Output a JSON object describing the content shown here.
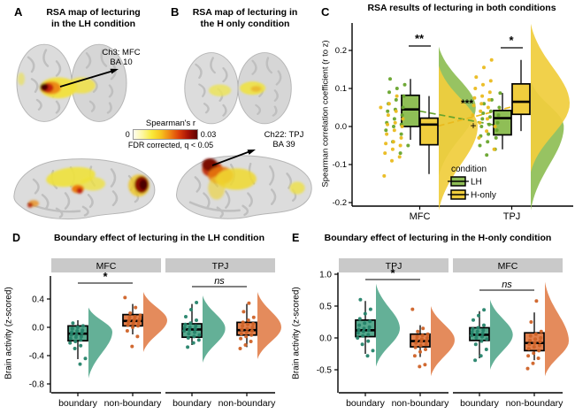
{
  "figure": {
    "panel_a": {
      "label": "A",
      "title_line1": "RSA map of lecturing",
      "title_line2": "in the LH condition",
      "annotation_line1": "Ch3: MFC",
      "annotation_line2": "BA 10"
    },
    "panel_b": {
      "label": "B",
      "title_line1": "RSA map of lecturing in",
      "title_line2": "the H only condition",
      "annotation_line1": "Ch22: TPJ",
      "annotation_line2": "BA 39"
    },
    "colorbar": {
      "title": "Spearman's r",
      "min_label": "0",
      "max_label": "0.03",
      "note": "FDR corrected, q < 0.05",
      "gradient": [
        "#fffef0",
        "#fdf7a0",
        "#f9ea3a",
        "#f7c41e",
        "#ef8313",
        "#dc3e0a",
        "#a51106",
        "#5d0302"
      ]
    },
    "panel_c": {
      "label": "C"
    },
    "panel_d": {
      "label": "D"
    },
    "panel_e": {
      "label": "E"
    }
  },
  "colors": {
    "lh_green": "#8fbe56",
    "lh_green_dot": "#67a42c",
    "honly_yellow": "#f0cd3d",
    "honly_yellow_dot": "#eaba1d",
    "boundary_teal": "#57a98e",
    "boundary_teal_dot": "#25836a",
    "nonboundary_orange": "#e2814e",
    "nonboundary_orange_dot": "#cf6227",
    "strip_gray": "#c9c9c9"
  },
  "chart_data": [
    {
      "id": "panel_c",
      "type": "raincloud-box",
      "title": "RSA results of lecturing in both conditions",
      "ylabel": "Spearman correlation coefficient (r to z)",
      "ylim": [
        -0.22,
        0.27
      ],
      "yticks": [
        0.2,
        0.1,
        0.0,
        -0.1,
        -0.2
      ],
      "categories": [
        "MFC",
        "TPJ"
      ],
      "legend": {
        "title": "condition",
        "entries": [
          {
            "label": "LH"
          },
          {
            "label": "H-only"
          }
        ]
      },
      "significance": {
        "MFC": "**",
        "TPJ": "*",
        "interaction": "***",
        "marginal": "+"
      },
      "trend_means": {
        "LH": [
          0.045,
          0.0
        ],
        "H_only": [
          -0.005,
          0.058
        ]
      },
      "groups": [
        {
          "category": "MFC",
          "condition": "LH",
          "box": {
            "lo": -0.035,
            "q1": 0.0,
            "med": 0.045,
            "q3": 0.082,
            "hi": 0.125
          },
          "violin": {
            "top": 0.21,
            "peak": 0.05,
            "bottom": -0.13,
            "rel": 0.95
          },
          "points": [
            -0.07,
            -0.05,
            -0.04,
            -0.02,
            -0.01,
            0.0,
            0.005,
            0.01,
            0.02,
            0.03,
            0.04,
            0.045,
            0.05,
            0.06,
            0.07,
            0.08,
            0.09,
            0.1,
            0.11,
            0.125
          ]
        },
        {
          "category": "MFC",
          "condition": "H-only",
          "box": {
            "lo": -0.125,
            "q1": -0.048,
            "med": 0.005,
            "q3": 0.022,
            "hi": 0.08
          },
          "violin": {
            "top": 0.16,
            "peak": 0.0,
            "bottom": -0.22,
            "rel": 1.0
          },
          "points": [
            -0.13,
            -0.09,
            -0.08,
            -0.07,
            -0.06,
            -0.05,
            -0.045,
            -0.04,
            -0.03,
            -0.02,
            -0.01,
            0.0,
            0.005,
            0.01,
            0.02,
            0.03,
            0.04,
            0.05,
            0.06,
            0.08
          ]
        },
        {
          "category": "TPJ",
          "condition": "LH",
          "box": {
            "lo": -0.06,
            "q1": -0.022,
            "med": 0.022,
            "q3": 0.042,
            "hi": 0.088
          },
          "violin": {
            "top": 0.12,
            "peak": 0.0,
            "bottom": -0.22,
            "rel": 0.85
          },
          "points": [
            -0.075,
            -0.06,
            -0.05,
            -0.04,
            -0.03,
            -0.025,
            -0.02,
            -0.01,
            0.0,
            0.005,
            0.01,
            0.02,
            0.025,
            0.03,
            0.035,
            0.04,
            0.05,
            0.06,
            0.07,
            0.088
          ]
        },
        {
          "category": "TPJ",
          "condition": "H-only",
          "box": {
            "lo": -0.012,
            "q1": 0.032,
            "med": 0.065,
            "q3": 0.112,
            "hi": 0.175
          },
          "violin": {
            "top": 0.27,
            "peak": 0.06,
            "bottom": -0.12,
            "rel": 1.0
          },
          "points": [
            -0.06,
            -0.03,
            -0.012,
            0.0,
            0.01,
            0.02,
            0.03,
            0.04,
            0.05,
            0.055,
            0.06,
            0.07,
            0.075,
            0.08,
            0.09,
            0.1,
            0.11,
            0.12,
            0.13,
            0.155,
            0.175
          ]
        }
      ]
    },
    {
      "id": "panel_d",
      "type": "faceted-raincloud",
      "title": "Boundary effect of lecturing in the LH condition",
      "ylabel": "Brain activity (z-scored)",
      "ylim": [
        -0.85,
        0.62
      ],
      "yticks": [
        0.4,
        0.0,
        -0.4,
        -0.8
      ],
      "categories": [
        "boundary",
        "non-boundary"
      ],
      "facets": [
        {
          "name": "MFC",
          "significance": "*",
          "groups": [
            {
              "category": "boundary",
              "box": {
                "lo": -0.45,
                "q1": -0.19,
                "med": -0.09,
                "q3": 0.02,
                "hi": 0.1
              },
              "violin": {
                "top": 0.28,
                "peak": -0.06,
                "bottom": -0.72,
                "rel": 1.0
              },
              "points": [
                -0.52,
                -0.44,
                -0.3,
                -0.26,
                -0.22,
                -0.2,
                -0.18,
                -0.16,
                -0.14,
                -0.13,
                -0.11,
                -0.1,
                -0.08,
                -0.07,
                -0.05,
                -0.04,
                -0.02,
                0.0,
                0.02,
                0.06
              ]
            },
            {
              "category": "non-boundary",
              "box": {
                "lo": -0.1,
                "q1": 0.02,
                "med": 0.09,
                "q3": 0.18,
                "hi": 0.33
              },
              "violin": {
                "top": 0.5,
                "peak": 0.1,
                "bottom": -0.35,
                "rel": 1.0
              },
              "points": [
                -0.27,
                -0.13,
                -0.05,
                0.0,
                0.02,
                0.03,
                0.05,
                0.06,
                0.07,
                0.08,
                0.09,
                0.1,
                0.11,
                0.12,
                0.14,
                0.15,
                0.17,
                0.2,
                0.28,
                0.42
              ]
            }
          ]
        },
        {
          "name": "TPJ",
          "significance": "ns",
          "groups": [
            {
              "category": "boundary",
              "box": {
                "lo": -0.25,
                "q1": -0.14,
                "med": -0.03,
                "q3": 0.05,
                "hi": 0.33
              },
              "violin": {
                "top": 0.45,
                "peak": -0.02,
                "bottom": -0.5,
                "rel": 0.95
              },
              "points": [
                -0.28,
                -0.22,
                -0.18,
                -0.15,
                -0.13,
                -0.11,
                -0.09,
                -0.07,
                -0.05,
                -0.04,
                -0.02,
                -0.01,
                0.0,
                0.02,
                0.04,
                0.06,
                0.1,
                0.15,
                0.25,
                0.35
              ]
            },
            {
              "category": "non-boundary",
              "box": {
                "lo": -0.28,
                "q1": -0.11,
                "med": -0.04,
                "q3": 0.07,
                "hi": 0.33
              },
              "violin": {
                "top": 0.5,
                "peak": 0.0,
                "bottom": -0.45,
                "rel": 1.0
              },
              "points": [
                -0.3,
                -0.25,
                -0.2,
                -0.16,
                -0.13,
                -0.11,
                -0.09,
                -0.07,
                -0.05,
                -0.03,
                -0.02,
                0.0,
                0.02,
                0.04,
                0.05,
                0.07,
                0.1,
                0.14,
                0.22,
                0.34
              ]
            }
          ]
        }
      ]
    },
    {
      "id": "panel_e",
      "type": "faceted-raincloud",
      "title": "Boundary effect of lecturing in the H-only condition",
      "ylabel": "Brain activity (z-scored)",
      "ylim": [
        -0.8,
        1.05
      ],
      "yticks": [
        1.0,
        0.5,
        0.0,
        -0.5
      ],
      "categories": [
        "boundary",
        "non-boundary"
      ],
      "facets": [
        {
          "name": "TPJ",
          "significance": "*",
          "groups": [
            {
              "category": "boundary",
              "box": {
                "lo": -0.25,
                "q1": 0.02,
                "med": 0.12,
                "q3": 0.28,
                "hi": 0.58
              },
              "violin": {
                "top": 0.85,
                "peak": 0.15,
                "bottom": -0.45,
                "rel": 1.0
              },
              "points": [
                -0.28,
                -0.2,
                -0.1,
                -0.05,
                0.0,
                0.03,
                0.05,
                0.08,
                0.1,
                0.12,
                0.13,
                0.15,
                0.17,
                0.2,
                0.23,
                0.26,
                0.3,
                0.38,
                0.45,
                0.6
              ]
            },
            {
              "category": "non-boundary",
              "box": {
                "lo": -0.3,
                "q1": -0.14,
                "med": -0.05,
                "q3": 0.06,
                "hi": 0.2
              },
              "violin": {
                "top": 0.5,
                "peak": -0.03,
                "bottom": -0.6,
                "rel": 1.0
              },
              "points": [
                -0.45,
                -0.42,
                -0.28,
                -0.22,
                -0.18,
                -0.15,
                -0.12,
                -0.1,
                -0.08,
                -0.06,
                -0.05,
                -0.03,
                -0.02,
                0.0,
                0.02,
                0.04,
                0.06,
                0.1,
                0.15,
                0.45
              ]
            }
          ]
        },
        {
          "name": "MFC",
          "significance": "ns",
          "groups": [
            {
              "category": "boundary",
              "box": {
                "lo": -0.32,
                "q1": -0.04,
                "med": 0.05,
                "q3": 0.16,
                "hi": 0.42
              },
              "violin": {
                "top": 0.6,
                "peak": 0.05,
                "bottom": -0.5,
                "rel": 0.95
              },
              "points": [
                -0.35,
                -0.28,
                -0.18,
                -0.1,
                -0.05,
                -0.02,
                0.0,
                0.02,
                0.04,
                0.05,
                0.07,
                0.09,
                0.1,
                0.12,
                0.14,
                0.16,
                0.2,
                0.28,
                0.35,
                0.44
              ]
            },
            {
              "category": "non-boundary",
              "box": {
                "lo": -0.35,
                "q1": -0.2,
                "med": -0.08,
                "q3": 0.08,
                "hi": 0.4
              },
              "violin": {
                "top": 0.88,
                "peak": -0.05,
                "bottom": -0.6,
                "rel": 1.0
              },
              "points": [
                -0.48,
                -0.4,
                -0.32,
                -0.28,
                -0.24,
                -0.2,
                -0.17,
                -0.14,
                -0.12,
                -0.1,
                -0.08,
                -0.06,
                -0.04,
                -0.02,
                0.0,
                0.03,
                0.06,
                0.1,
                0.25,
                0.58
              ]
            }
          ]
        }
      ]
    }
  ]
}
